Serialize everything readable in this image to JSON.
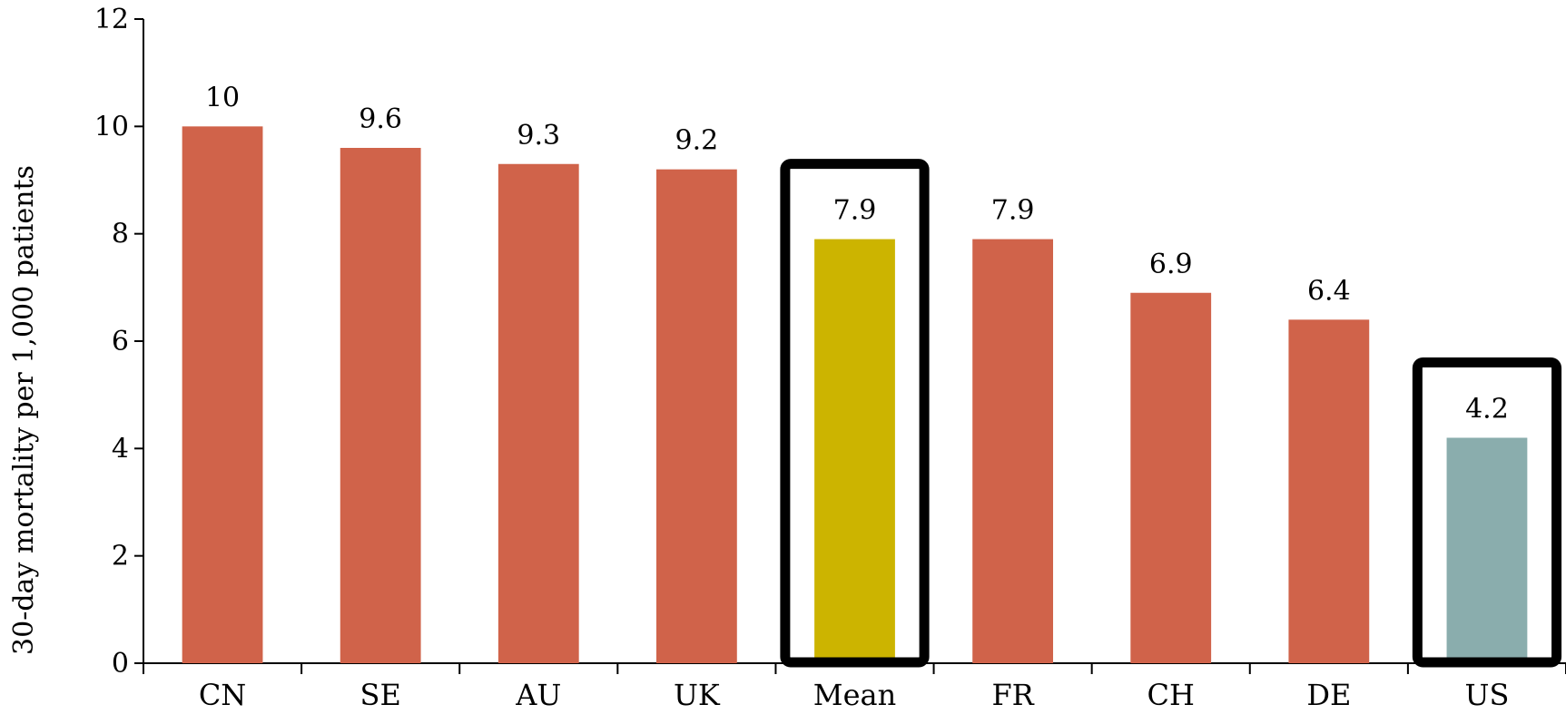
{
  "chart_data": {
    "type": "bar",
    "title": "",
    "xlabel": "",
    "ylabel": "30-day mortality per 1,000 patients",
    "ylim": [
      0,
      12
    ],
    "yticks": [
      0,
      2,
      4,
      6,
      8,
      10,
      12
    ],
    "grid": false,
    "legend": "none",
    "categories": [
      "CN",
      "SE",
      "AU",
      "UK",
      "Mean",
      "FR",
      "CH",
      "DE",
      "US"
    ],
    "values": [
      10,
      9.6,
      9.3,
      9.2,
      7.9,
      7.9,
      6.9,
      6.4,
      4.2
    ],
    "data_labels": [
      "10",
      "9.6",
      "9.3",
      "9.2",
      "7.9",
      "7.9",
      "6.9",
      "6.4",
      "4.2"
    ],
    "bar_colors": [
      "#d0634a",
      "#d0634a",
      "#d0634a",
      "#d0634a",
      "#ccb400",
      "#d0634a",
      "#d0634a",
      "#d0634a",
      "#8aadad"
    ],
    "highlighted_categories": [
      "Mean",
      "US"
    ],
    "highlight_box_color": "#000000"
  }
}
